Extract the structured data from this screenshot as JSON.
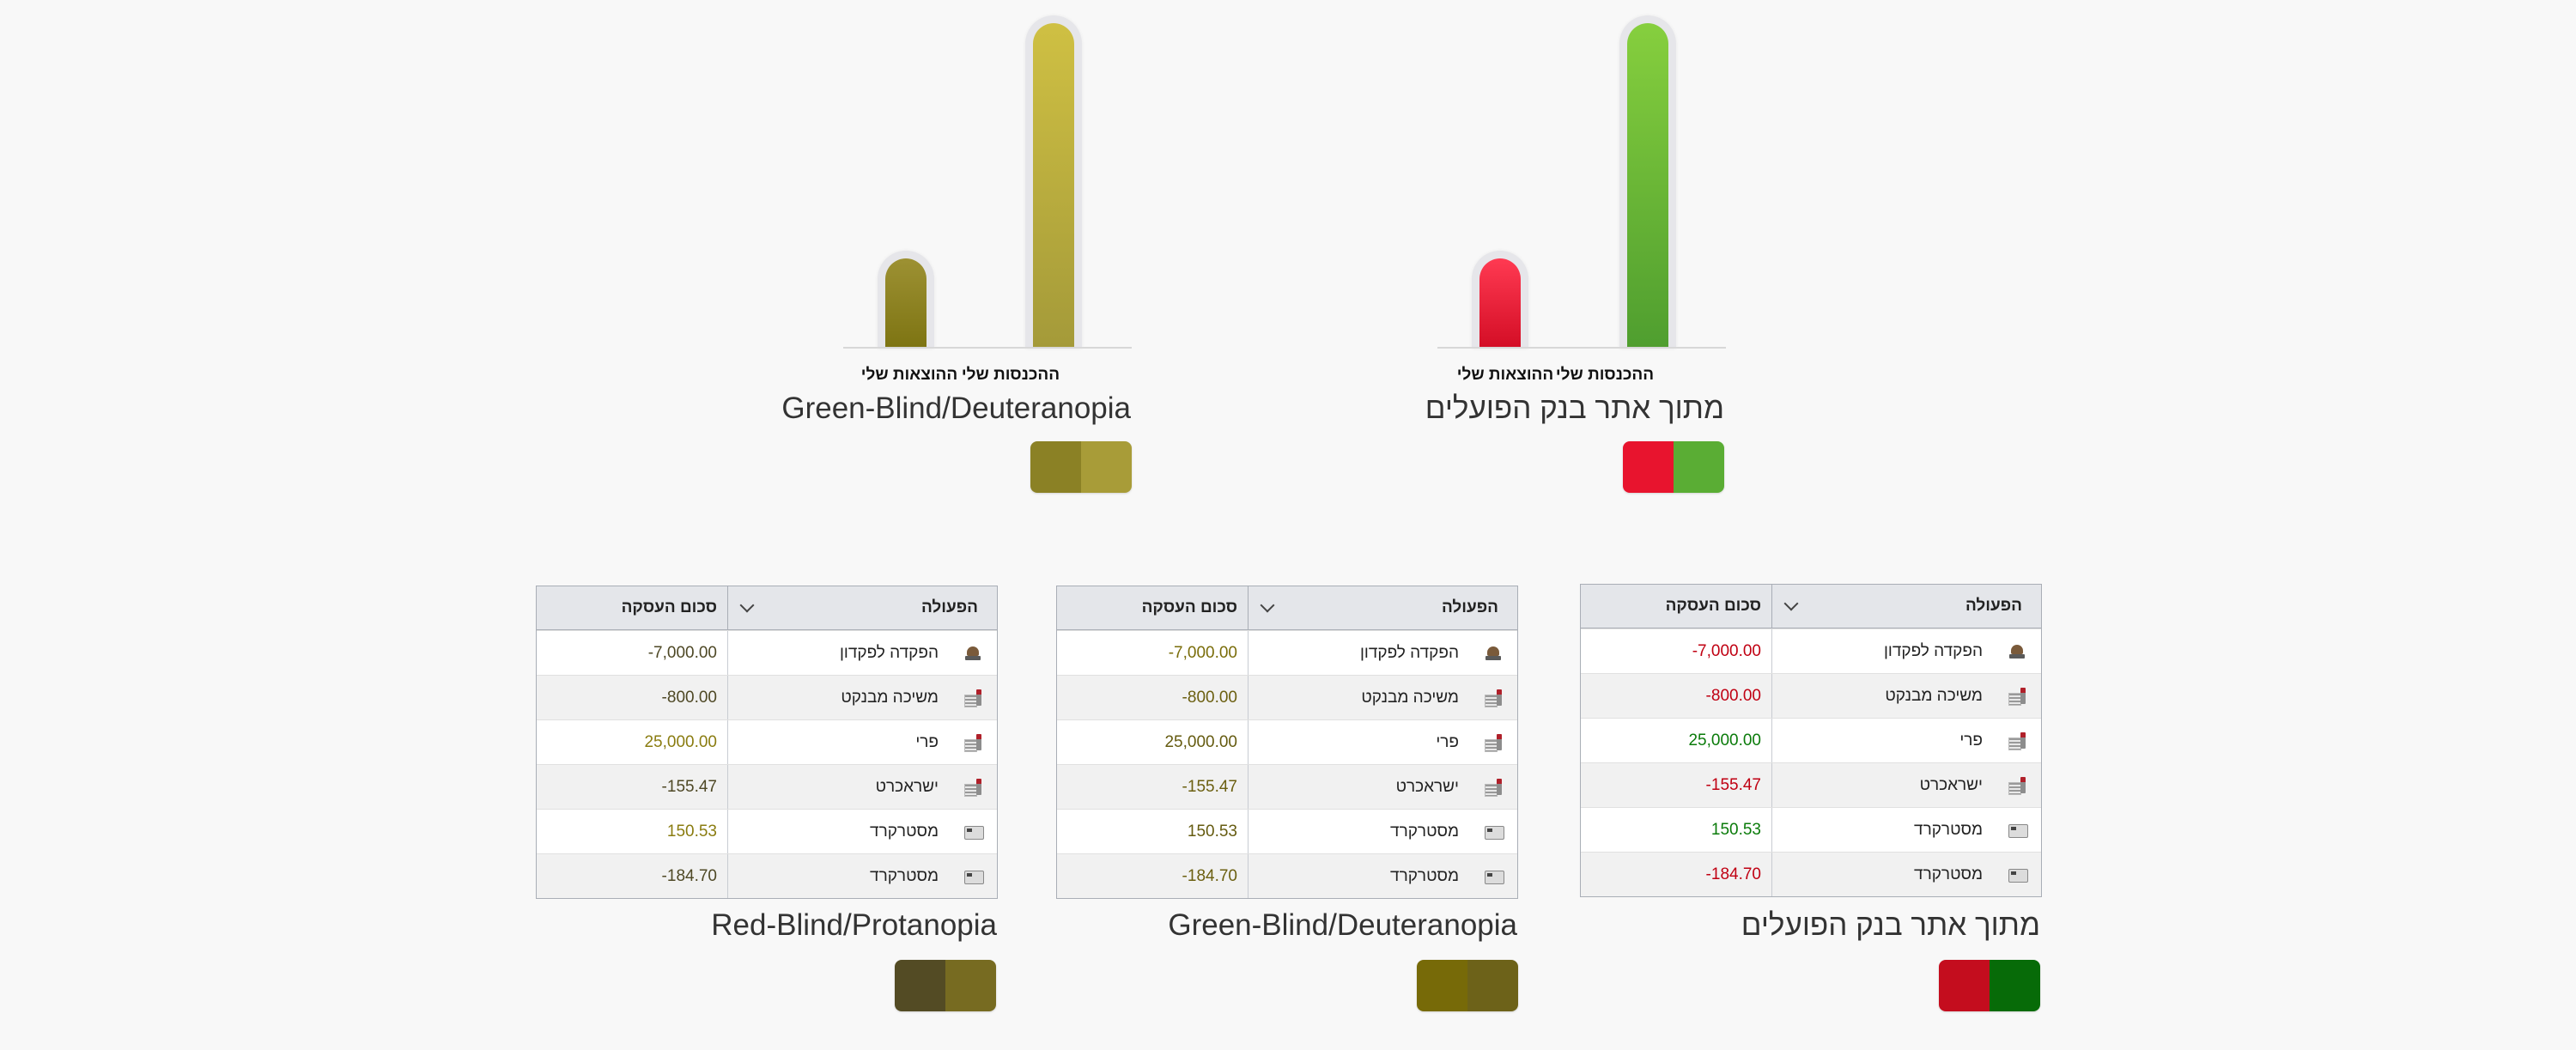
{
  "colors": {
    "normal_income": "#5aad34",
    "normal_expense": "#e8142e",
    "deut_income": "#b4a93c",
    "deut_expense": "#8b8125",
    "normal_pos_text": "#0a7b0a",
    "normal_neg_text": "#c00012",
    "deut_pos_text": "#7a6d0a",
    "deut_neg_text": "#7a6d0a",
    "prot_pos_text": "#8a7c10",
    "prot_neg_text": "#4e4825"
  },
  "charts": [
    {
      "title": "מתוך אתר בנק הפועלים",
      "bars": [
        {
          "label": "ההכנסות שלי",
          "value": 25000
        },
        {
          "label": "ההוצאות שלי",
          "value": 7000
        }
      ],
      "swatch": [
        "#e8142e",
        "#5aad34"
      ]
    },
    {
      "title": "Green-Blind/Deuteranopia",
      "bars": [
        {
          "label": "ההכנסות שלי",
          "value": 25000
        },
        {
          "label": "ההוצאות שלי",
          "value": 7000
        }
      ],
      "swatch": [
        "#8b8125",
        "#a89c38"
      ]
    }
  ],
  "tables": [
    {
      "title": "מתוך אתר בנק הפועלים",
      "header": {
        "operation": "הפעולה",
        "amount": "סכום העסקה"
      },
      "rows": [
        {
          "icon": "deposit-icon",
          "operation": "הפקדה לפקדון",
          "amount": "-7,000.00"
        },
        {
          "icon": "document-icon",
          "operation": "משיכה מבנקט",
          "amount": "-800.00"
        },
        {
          "icon": "document-icon",
          "operation": "פרי",
          "amount": "25,000.00"
        },
        {
          "icon": "document-icon",
          "operation": "ישראכרט",
          "amount": "-155.47"
        },
        {
          "icon": "card-icon",
          "operation": "מסטרקרד",
          "amount": "150.53"
        },
        {
          "icon": "card-icon",
          "operation": "מסטרקרד",
          "amount": "-184.70"
        }
      ],
      "swatch": [
        "#c40d1e",
        "#076b08"
      ]
    },
    {
      "title": "Green-Blind/Deuteranopia",
      "header": {
        "operation": "הפעולה",
        "amount": "סכום העסקה"
      },
      "rows": [
        {
          "icon": "deposit-icon",
          "operation": "הפקדה לפקדון",
          "amount": "-7,000.00"
        },
        {
          "icon": "document-icon",
          "operation": "משיכה מבנקט",
          "amount": "-800.00"
        },
        {
          "icon": "document-icon",
          "operation": "פרי",
          "amount": "25,000.00"
        },
        {
          "icon": "document-icon",
          "operation": "ישראכרט",
          "amount": "-155.47"
        },
        {
          "icon": "card-icon",
          "operation": "מסטרקרד",
          "amount": "150.53"
        },
        {
          "icon": "card-icon",
          "operation": "מסטרקרד",
          "amount": "-184.70"
        }
      ],
      "swatch": [
        "#776a08",
        "#6d6219"
      ]
    },
    {
      "title": "Red-Blind/Protanopia",
      "header": {
        "operation": "הפעולה",
        "amount": "סכום העסקה"
      },
      "rows": [
        {
          "icon": "deposit-icon",
          "operation": "הפקדה לפקדון",
          "amount": "-7,000.00"
        },
        {
          "icon": "document-icon",
          "operation": "משיכה מבנקט",
          "amount": "-800.00"
        },
        {
          "icon": "document-icon",
          "operation": "פרי",
          "amount": "25,000.00"
        },
        {
          "icon": "document-icon",
          "operation": "ישראכרט",
          "amount": "-155.47"
        },
        {
          "icon": "card-icon",
          "operation": "מסטרקרד",
          "amount": "150.53"
        },
        {
          "icon": "card-icon",
          "operation": "מסטרקרד",
          "amount": "-184.70"
        }
      ],
      "swatch": [
        "#534b24",
        "#776b21"
      ]
    }
  ]
}
